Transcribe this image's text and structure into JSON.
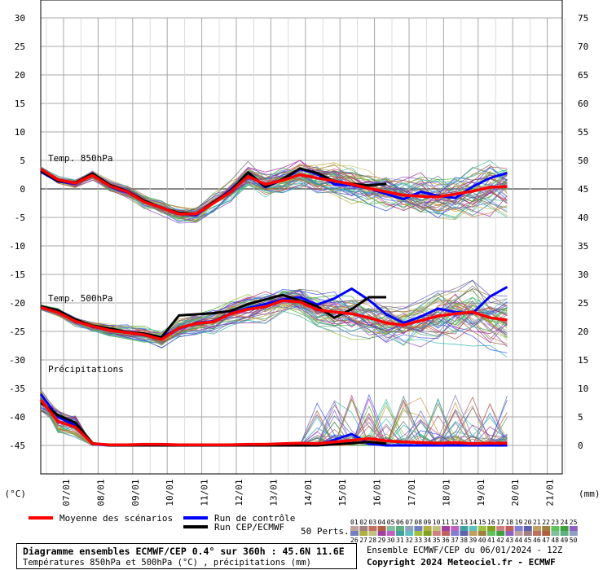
{
  "chart_data": {
    "type": "line",
    "left_axis_unit": "(°C)",
    "right_axis_unit": "(mm)",
    "left_ticks": [
      30,
      25,
      20,
      15,
      10,
      5,
      0,
      -5,
      -10,
      -15,
      -20,
      -25,
      -30,
      -35,
      -40,
      -45
    ],
    "right_ticks": [
      75,
      70,
      65,
      60,
      55,
      50,
      45,
      40,
      35,
      30,
      25,
      20,
      15,
      10,
      5,
      0
    ],
    "x_labels": [
      "07/01",
      "08/01",
      "09/01",
      "10/01",
      "11/01",
      "12/01",
      "13/01",
      "14/01",
      "15/01",
      "16/01",
      "17/01",
      "18/01",
      "19/01",
      "20/01",
      "21/01"
    ],
    "panel_labels": {
      "t850": "Temp. 850hPa",
      "t500": "Temp. 500hPa",
      "precip": "Précipitations"
    },
    "t850_mean": [
      3.5,
      1.6,
      1.0,
      2.4,
      0.5,
      -0.5,
      -2.3,
      -3.3,
      -4.4,
      -4.4,
      -2.5,
      -0.5,
      2.2,
      0.8,
      1.5,
      2.5,
      1.9,
      1.4,
      0.8,
      0.1,
      -0.5,
      -1.1,
      -1.3,
      -1.4,
      -0.9,
      -0.4,
      0.3,
      0.4
    ],
    "t850_control": [
      3.0,
      1.3,
      0.9,
      2.6,
      0.4,
      -0.6,
      -2.2,
      -3.3,
      -4.3,
      -4.6,
      -2.4,
      -0.2,
      2.8,
      0.3,
      1.6,
      3.5,
      2.6,
      0.8,
      0.6,
      0.1,
      -0.9,
      -1.8,
      -0.5,
      -1.2,
      -1.6,
      0.4,
      1.9,
      2.8
    ],
    "t850_run": [
      3.2,
      1.4,
      1.1,
      2.7,
      0.7,
      -0.4,
      -2.1,
      -3.3,
      -4.2,
      -4.4,
      -2.3,
      -0.4,
      2.9,
      0.4,
      1.7,
      3.6,
      2.8,
      1.3,
      0.9,
      0.6,
      0.9
    ],
    "t500_mean": [
      -20.8,
      -21.7,
      -23.2,
      -24.1,
      -24.8,
      -25.2,
      -25.6,
      -26.4,
      -24.4,
      -23.6,
      -23.3,
      -21.9,
      -21.1,
      -20.7,
      -19.6,
      -19.8,
      -21.2,
      -21.6,
      -21.9,
      -22.6,
      -23.5,
      -23.9,
      -23.1,
      -22.3,
      -21.9,
      -21.6,
      -22.6,
      -23.0
    ],
    "t500_control": [
      -20.8,
      -21.5,
      -23.0,
      -24.2,
      -24.7,
      -25.2,
      -25.7,
      -26.0,
      -24.5,
      -23.5,
      -23.2,
      -21.8,
      -20.9,
      -20.2,
      -19.4,
      -19.0,
      -20.3,
      -19.2,
      -17.5,
      -19.5,
      -22.0,
      -23.5,
      -22.4,
      -21.0,
      -21.6,
      -21.8,
      -18.9,
      -17.2
    ],
    "t500_run": [
      -20.6,
      -21.3,
      -22.9,
      -24.0,
      -24.5,
      -25.1,
      -25.4,
      -26.0,
      -22.2,
      -22.0,
      -21.8,
      -21.4,
      -20.2,
      -19.4,
      -18.6,
      -19.6,
      -20.6,
      -22.6,
      -21.1,
      -19.0,
      -19.0
    ],
    "precip_mean": [
      8.0,
      4.2,
      3.2,
      0.3,
      0.1,
      0.1,
      0.2,
      0.2,
      0.1,
      0.1,
      0.1,
      0.1,
      0.2,
      0.2,
      0.3,
      0.4,
      0.3,
      0.6,
      0.9,
      1.2,
      0.8,
      0.6,
      0.5,
      0.4,
      0.5,
      0.3,
      0.4,
      0.4
    ],
    "precip_control": [
      9.0,
      5.0,
      3.5,
      0.2,
      0.0,
      0.0,
      0.0,
      0.0,
      0.0,
      0.0,
      0.0,
      0.0,
      0.0,
      0.0,
      0.0,
      0.0,
      0.0,
      1.0,
      2.0,
      0.3,
      0.0,
      0.0,
      0.0,
      0.0,
      0.0,
      0.0,
      0.0,
      0.0
    ],
    "precip_run": [
      7.5,
      5.3,
      4.0,
      0.4,
      0.0,
      0.0,
      0.0,
      0.0,
      0.0,
      0.0,
      0.0,
      0.0,
      0.0,
      0.0,
      0.0,
      0.0,
      0.0,
      0.2,
      0.4,
      0.6,
      0.3
    ],
    "ylim": [
      -50,
      30
    ],
    "n_members": 50,
    "series_legend": {
      "mean": "Moyenne des scénarios",
      "control": "Run de contrôle",
      "run": "Run CEP/ECMWF",
      "members": "50 Perts.",
      "numbers_top": [
        "01",
        "02",
        "03",
        "04",
        "05",
        "06",
        "07",
        "08",
        "09",
        "10",
        "11",
        "12",
        "13",
        "14",
        "15",
        "16",
        "17",
        "18",
        "19",
        "20",
        "21",
        "22",
        "23",
        "24",
        "25"
      ],
      "numbers_bottom": [
        "26",
        "27",
        "28",
        "29",
        "30",
        "31",
        "32",
        "33",
        "34",
        "35",
        "36",
        "37",
        "38",
        "39",
        "40",
        "41",
        "42",
        "43",
        "44",
        "45",
        "46",
        "47",
        "48",
        "49",
        "50"
      ]
    },
    "colors": {
      "mean": "#ff0000",
      "control": "#0000ff",
      "run": "#000000",
      "grid": "#a8a8a8"
    }
  },
  "footer": {
    "title": "Diagramme ensembles ECMWF/CEP 0.4° sur 360h : 45.6N 11.6E",
    "subtitle": "Températures 850hPa et 500hPa (°C) , précipitations (mm)",
    "run_info": "Ensemble ECMWF/CEP du 06/01/2024 - 12Z",
    "copyright": "Copyright 2024 Meteociel.fr - ECMWF"
  }
}
